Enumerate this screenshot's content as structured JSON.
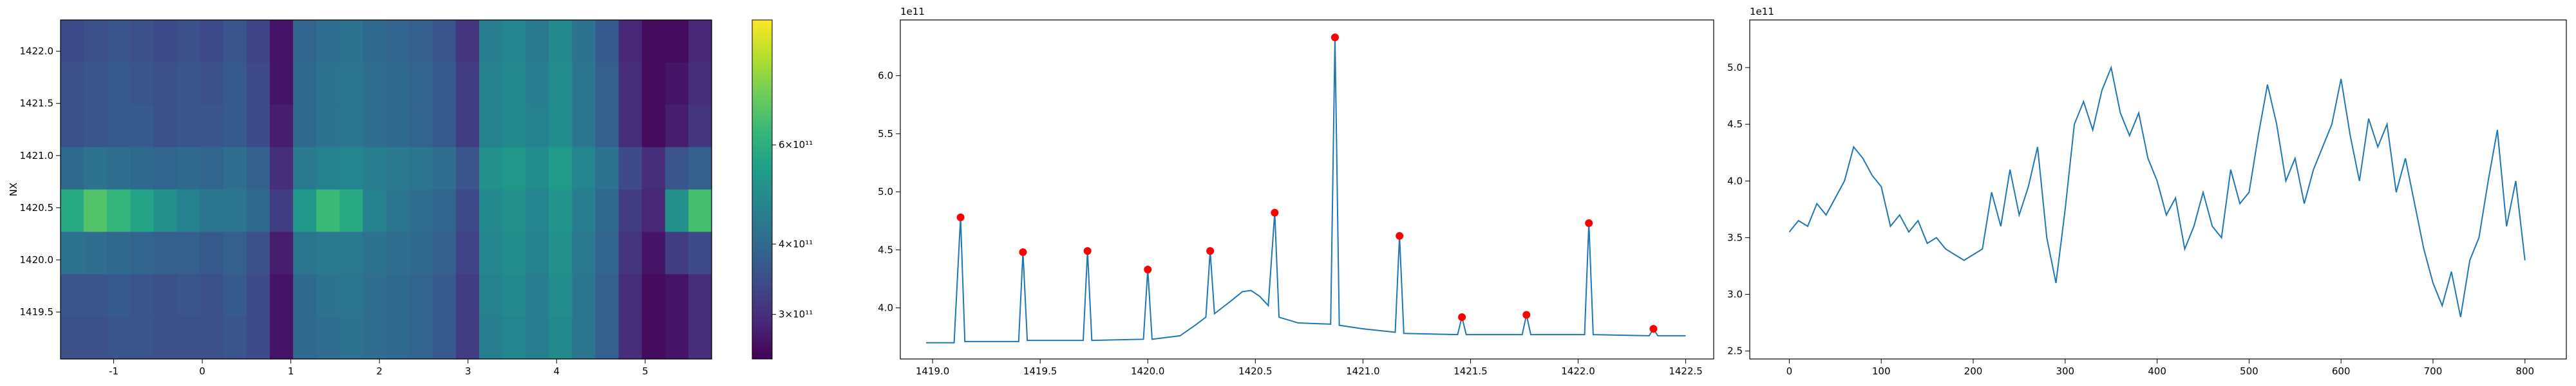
{
  "chart_data": [
    {
      "type": "heatmap",
      "ylabel": "NX",
      "cmap": "viridis",
      "xlim": [
        -1.6,
        5.75
      ],
      "ylim": [
        1419.05,
        1422.3
      ],
      "xticks": [
        -1,
        0,
        1,
        2,
        3,
        4,
        5
      ],
      "yticks": [
        1419.5,
        {
          "value": 1420,
          "label": "1420.0"
        },
        1420.5,
        {
          "value": 1421,
          "label": "1421.0"
        },
        1421.5,
        {
          "value": 1422,
          "label": "1422.0"
        }
      ],
      "z": [
        [
          340000000000.0,
          350000000000.0,
          360000000000.0,
          350000000000.0,
          340000000000.0,
          350000000000.0,
          340000000000.0,
          360000000000.0,
          330000000000.0,
          270000000000.0,
          390000000000.0,
          410000000000.0,
          420000000000.0,
          400000000000.0,
          390000000000.0,
          380000000000.0,
          360000000000.0,
          310000000000.0,
          450000000000.0,
          470000000000.0,
          440000000000.0,
          480000000000.0,
          420000000000.0,
          370000000000.0,
          290000000000.0,
          260000000000.0,
          260000000000.0,
          290000000000.0
        ],
        [
          350000000000.0,
          360000000000.0,
          370000000000.0,
          360000000000.0,
          350000000000.0,
          360000000000.0,
          350000000000.0,
          370000000000.0,
          340000000000.0,
          270000000000.0,
          400000000000.0,
          420000000000.0,
          430000000000.0,
          410000000000.0,
          400000000000.0,
          390000000000.0,
          370000000000.0,
          320000000000.0,
          460000000000.0,
          480000000000.0,
          450000000000.0,
          490000000000.0,
          430000000000.0,
          380000000000.0,
          300000000000.0,
          260000000000.0,
          270000000000.0,
          300000000000.0
        ],
        [
          350000000000.0,
          360000000000.0,
          370000000000.0,
          370000000000.0,
          350000000000.0,
          360000000000.0,
          360000000000.0,
          370000000000.0,
          340000000000.0,
          280000000000.0,
          400000000000.0,
          420000000000.0,
          430000000000.0,
          410000000000.0,
          400000000000.0,
          390000000000.0,
          370000000000.0,
          320000000000.0,
          460000000000.0,
          480000000000.0,
          460000000000.0,
          490000000000.0,
          430000000000.0,
          380000000000.0,
          300000000000.0,
          260000000000.0,
          280000000000.0,
          310000000000.0
        ],
        [
          400000000000.0,
          420000000000.0,
          410000000000.0,
          400000000000.0,
          390000000000.0,
          400000000000.0,
          390000000000.0,
          410000000000.0,
          380000000000.0,
          300000000000.0,
          440000000000.0,
          460000000000.0,
          470000000000.0,
          450000000000.0,
          440000000000.0,
          430000000000.0,
          410000000000.0,
          360000000000.0,
          500000000000.0,
          520000000000.0,
          490000000000.0,
          530000000000.0,
          470000000000.0,
          420000000000.0,
          340000000000.0,
          300000000000.0,
          360000000000.0,
          380000000000.0
        ],
        [
          580000000000.0,
          680000000000.0,
          620000000000.0,
          560000000000.0,
          500000000000.0,
          460000000000.0,
          430000000000.0,
          430000000000.0,
          400000000000.0,
          320000000000.0,
          520000000000.0,
          640000000000.0,
          580000000000.0,
          460000000000.0,
          430000000000.0,
          410000000000.0,
          390000000000.0,
          340000000000.0,
          480000000000.0,
          500000000000.0,
          470000000000.0,
          510000000000.0,
          450000000000.0,
          400000000000.0,
          320000000000.0,
          290000000000.0,
          500000000000.0,
          660000000000.0
        ],
        [
          420000000000.0,
          410000000000.0,
          400000000000.0,
          390000000000.0,
          380000000000.0,
          380000000000.0,
          370000000000.0,
          380000000000.0,
          350000000000.0,
          280000000000.0,
          430000000000.0,
          440000000000.0,
          440000000000.0,
          420000000000.0,
          410000000000.0,
          400000000000.0,
          380000000000.0,
          330000000000.0,
          470000000000.0,
          490000000000.0,
          460000000000.0,
          500000000000.0,
          440000000000.0,
          390000000000.0,
          310000000000.0,
          270000000000.0,
          320000000000.0,
          340000000000.0
        ],
        [
          360000000000.0,
          360000000000.0,
          370000000000.0,
          360000000000.0,
          350000000000.0,
          360000000000.0,
          350000000000.0,
          370000000000.0,
          340000000000.0,
          270000000000.0,
          400000000000.0,
          420000000000.0,
          430000000000.0,
          410000000000.0,
          400000000000.0,
          390000000000.0,
          370000000000.0,
          320000000000.0,
          460000000000.0,
          480000000000.0,
          450000000000.0,
          490000000000.0,
          430000000000.0,
          380000000000.0,
          300000000000.0,
          260000000000.0,
          270000000000.0,
          300000000000.0
        ],
        [
          350000000000.0,
          350000000000.0,
          360000000000.0,
          360000000000.0,
          350000000000.0,
          350000000000.0,
          350000000000.0,
          360000000000.0,
          340000000000.0,
          270000000000.0,
          400000000000.0,
          410000000000.0,
          420000000000.0,
          410000000000.0,
          400000000000.0,
          390000000000.0,
          370000000000.0,
          320000000000.0,
          450000000000.0,
          470000000000.0,
          450000000000.0,
          480000000000.0,
          430000000000.0,
          380000000000.0,
          300000000000.0,
          260000000000.0,
          270000000000.0,
          300000000000.0
        ]
      ],
      "colorbar": {
        "scale": "log",
        "lim": [
          250000000000.0,
          1000000000000.0
        ],
        "ticks": [
          {
            "value": 300000000000.0,
            "label": "3×10¹¹"
          },
          {
            "value": 400000000000.0,
            "label": "4×10¹¹"
          },
          {
            "value": 600000000000.0,
            "label": "6×10¹¹"
          }
        ]
      }
    },
    {
      "type": "line",
      "offset_text": "1e11",
      "xlim": [
        1418.85,
        1422.63
      ],
      "ylim": [
        3.56,
        6.48
      ],
      "xticks": [
        {
          "value": 1419,
          "label": "1419.0"
        },
        1419.5,
        {
          "value": 1420,
          "label": "1420.0"
        },
        1420.5,
        {
          "value": 1421,
          "label": "1421.0"
        },
        1421.5,
        {
          "value": 1422,
          "label": "1422.0"
        },
        1422.5
      ],
      "yticks": [
        {
          "value": 4,
          "label": "4.0"
        },
        4.5,
        {
          "value": 5,
          "label": "5.0"
        },
        5.5,
        {
          "value": 6,
          "label": "6.0"
        }
      ],
      "x": [
        1418.97,
        1419.1,
        1419.13,
        1419.15,
        1419.4,
        1419.42,
        1419.44,
        1419.7,
        1419.72,
        1419.74,
        1419.98,
        1420.0,
        1420.02,
        1420.15,
        1420.22,
        1420.27,
        1420.29,
        1420.31,
        1420.38,
        1420.44,
        1420.48,
        1420.52,
        1420.56,
        1420.59,
        1420.61,
        1420.7,
        1420.85,
        1420.87,
        1420.89,
        1421.0,
        1421.15,
        1421.17,
        1421.19,
        1421.44,
        1421.46,
        1421.48,
        1421.74,
        1421.76,
        1421.78,
        1422.03,
        1422.05,
        1422.07,
        1422.33,
        1422.35,
        1422.37,
        1422.5
      ],
      "series": [
        {
          "color": "#1f77b4",
          "values": [
            3.7,
            3.7,
            4.78,
            3.71,
            3.71,
            4.48,
            3.72,
            3.72,
            4.49,
            3.72,
            3.73,
            4.33,
            3.73,
            3.76,
            3.85,
            3.92,
            4.49,
            3.95,
            4.05,
            4.14,
            4.15,
            4.1,
            4.02,
            4.82,
            3.92,
            3.87,
            3.86,
            6.33,
            3.85,
            3.82,
            3.79,
            4.62,
            3.78,
            3.77,
            3.92,
            3.77,
            3.77,
            3.94,
            3.77,
            3.77,
            4.73,
            3.77,
            3.76,
            3.82,
            3.76,
            3.76
          ]
        },
        {
          "color": "#ff0000",
          "marker": "o",
          "x": [
            1419.13,
            1419.42,
            1419.72,
            1420.0,
            1420.29,
            1420.59,
            1420.87,
            1421.17,
            1421.46,
            1421.76,
            1422.05,
            1422.35
          ],
          "values": [
            4.78,
            4.48,
            4.49,
            4.33,
            4.49,
            4.82,
            6.33,
            4.62,
            3.92,
            3.94,
            4.73,
            3.82
          ]
        }
      ]
    },
    {
      "type": "line",
      "offset_text": "1e11",
      "xlim": [
        -43,
        845
      ],
      "ylim": [
        2.43,
        5.42
      ],
      "xticks": [
        0,
        100,
        200,
        300,
        400,
        500,
        600,
        700,
        800
      ],
      "yticks": [
        2.5,
        {
          "value": 3,
          "label": "3.0"
        },
        3.5,
        {
          "value": 4,
          "label": "4.0"
        },
        4.5,
        {
          "value": 5,
          "label": "5.0"
        }
      ],
      "x": [
        0,
        10,
        20,
        30,
        40,
        50,
        60,
        70,
        80,
        90,
        100,
        110,
        120,
        130,
        140,
        150,
        160,
        170,
        180,
        190,
        200,
        210,
        220,
        230,
        240,
        250,
        260,
        270,
        280,
        290,
        300,
        310,
        320,
        330,
        340,
        350,
        360,
        370,
        380,
        390,
        400,
        410,
        420,
        430,
        440,
        450,
        460,
        470,
        480,
        490,
        500,
        510,
        520,
        530,
        540,
        550,
        560,
        570,
        580,
        590,
        600,
        610,
        620,
        630,
        640,
        650,
        660,
        670,
        680,
        690,
        700,
        710,
        720,
        730,
        740,
        750,
        760,
        770,
        780,
        790,
        800
      ],
      "series": [
        {
          "color": "#1f77b4",
          "values": [
            3.55,
            3.65,
            3.6,
            3.8,
            3.7,
            3.85,
            4.0,
            4.3,
            4.2,
            4.05,
            3.95,
            3.6,
            3.7,
            3.55,
            3.65,
            3.45,
            3.5,
            3.4,
            3.35,
            3.3,
            3.35,
            3.4,
            3.9,
            3.6,
            4.1,
            3.7,
            3.95,
            4.3,
            3.5,
            3.1,
            3.75,
            4.5,
            4.7,
            4.45,
            4.8,
            5.0,
            4.6,
            4.4,
            4.6,
            4.2,
            4.0,
            3.7,
            3.85,
            3.4,
            3.6,
            3.9,
            3.6,
            3.5,
            4.1,
            3.8,
            3.9,
            4.4,
            4.85,
            4.5,
            4.0,
            4.2,
            3.8,
            4.1,
            4.3,
            4.5,
            4.9,
            4.4,
            4.0,
            4.55,
            4.3,
            4.5,
            3.9,
            4.2,
            3.8,
            3.4,
            3.1,
            2.9,
            3.2,
            2.8,
            3.3,
            3.5,
            4.0,
            4.45,
            3.6,
            4.0,
            3.3
          ]
        }
      ]
    }
  ]
}
